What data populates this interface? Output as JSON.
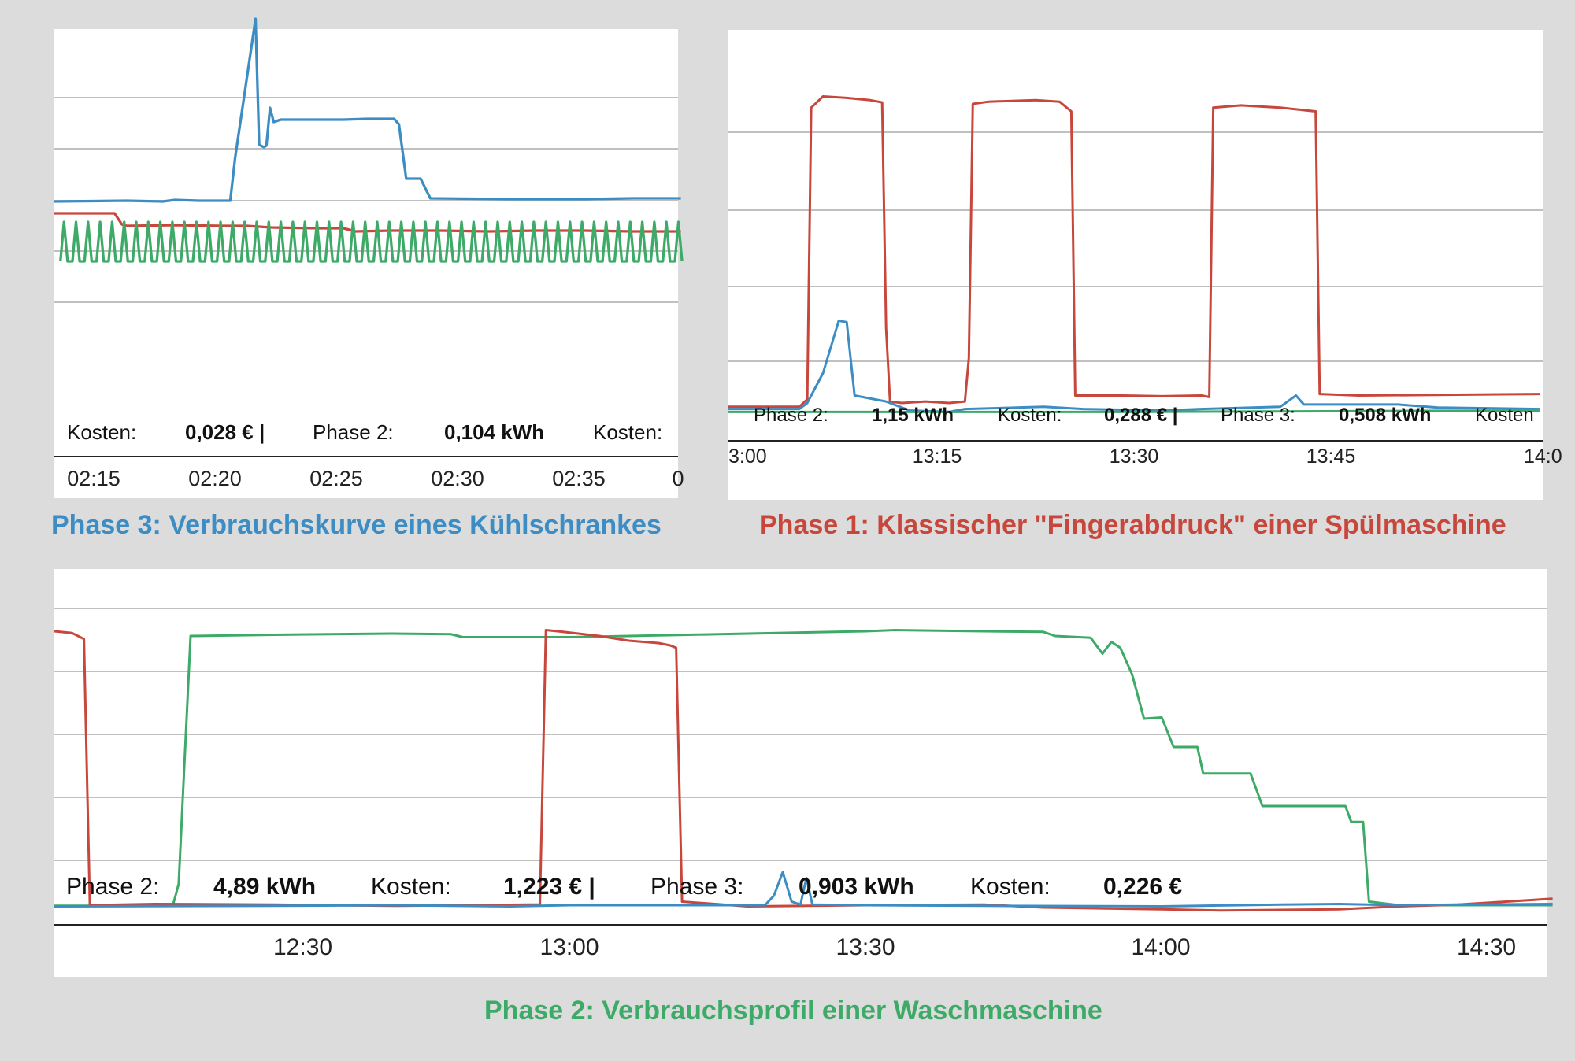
{
  "colors": {
    "blue": "#3c8dc4",
    "red": "#c8473c",
    "green": "#3daa67",
    "grid": "#c0c0c0",
    "axis": "#222222"
  },
  "captions": {
    "fridge": "Phase 3: Verbrauchskurve eines Kühlschrankes",
    "dishwasher": "Phase 1: Klassischer \"Fingerabdruck\" einer Spülmaschine",
    "washer": "Phase 2: Verbrauchsprofil einer Waschmaschine"
  },
  "chart_data": [
    {
      "type": "line",
      "x_ticks": [
        "02:15",
        "02:20",
        "02:25",
        "02:30",
        "02:35",
        "0"
      ],
      "x_range": [
        14,
        40
      ],
      "y_range": [
        0,
        400
      ],
      "grid": true,
      "footer": [
        {
          "label": "Kosten:",
          "value": "0,028 € |"
        },
        {
          "label": "Phase 2:",
          "value": "0,104 kWh"
        },
        {
          "label": "Kosten:",
          "value": ""
        }
      ],
      "series": [
        {
          "color": "blue",
          "points": [
            [
              14,
              136
            ],
            [
              17,
              137
            ],
            [
              18.5,
              136
            ],
            [
              19,
              138
            ],
            [
              20,
              137
            ],
            [
              21.3,
              137
            ],
            [
              21.5,
              191
            ],
            [
              22.35,
              368
            ],
            [
              22.5,
              208
            ],
            [
              22.7,
              205
            ],
            [
              22.8,
              207
            ],
            [
              22.95,
              255
            ],
            [
              23.1,
              237
            ],
            [
              23.4,
              240
            ],
            [
              25,
              240
            ],
            [
              26,
              240
            ],
            [
              27,
              241
            ],
            [
              28.1,
              241
            ],
            [
              28.3,
              234
            ],
            [
              28.6,
              165
            ],
            [
              29.2,
              165
            ],
            [
              29.6,
              140
            ],
            [
              33,
              139
            ],
            [
              36,
              139
            ],
            [
              38,
              140
            ],
            [
              40,
              140
            ]
          ]
        },
        {
          "color": "red",
          "points": [
            [
              14,
              121
            ],
            [
              16,
              121
            ],
            [
              16.5,
              121
            ],
            [
              16.8,
              107
            ],
            [
              17,
              105
            ],
            [
              19,
              106
            ],
            [
              21,
              105
            ],
            [
              22,
              105
            ],
            [
              23,
              103
            ],
            [
              25,
              102
            ],
            [
              26,
              102
            ],
            [
              26.5,
              98
            ],
            [
              28,
              99
            ],
            [
              30,
              99
            ],
            [
              32,
              98
            ],
            [
              34,
              99
            ],
            [
              36,
              99
            ],
            [
              38,
              98
            ],
            [
              40,
              98
            ]
          ]
        },
        {
          "color": "green",
          "peaks": {
            "start": 14.25,
            "end": 40,
            "period": 0.5,
            "high": 110,
            "low": 60
          }
        }
      ]
    },
    {
      "type": "line",
      "x_ticks": [
        "3:00",
        "13:15",
        "13:30",
        "13:45",
        "14:0"
      ],
      "x_range": [
        13.0,
        14.03
      ],
      "y_range": [
        0,
        500
      ],
      "grid": true,
      "footer": [
        {
          "label": "Phase 2:",
          "value": "1,15 kWh"
        },
        {
          "label": "Kosten:",
          "value": "0,288 € |"
        },
        {
          "label": "Phase 3:",
          "value": "0,508 kWh"
        },
        {
          "label": "Kosten",
          "value": ""
        }
      ],
      "series": [
        {
          "color": "red",
          "points": [
            [
              13.0,
              15
            ],
            [
              13.09,
              15
            ],
            [
              13.1,
              25
            ],
            [
              13.105,
              415
            ],
            [
              13.12,
              430
            ],
            [
              13.15,
              428
            ],
            [
              13.18,
              425
            ],
            [
              13.195,
              422
            ],
            [
              13.2,
              120
            ],
            [
              13.205,
              22
            ],
            [
              13.22,
              20
            ],
            [
              13.25,
              22
            ],
            [
              13.28,
              20
            ],
            [
              13.3,
              22
            ],
            [
              13.305,
              80
            ],
            [
              13.31,
              420
            ],
            [
              13.33,
              423
            ],
            [
              13.36,
              424
            ],
            [
              13.39,
              425
            ],
            [
              13.42,
              423
            ],
            [
              13.435,
              410
            ],
            [
              13.44,
              30
            ],
            [
              13.5,
              30
            ],
            [
              13.55,
              29
            ],
            [
              13.6,
              30
            ],
            [
              13.61,
              28
            ],
            [
              13.615,
              415
            ],
            [
              13.65,
              418
            ],
            [
              13.7,
              415
            ],
            [
              13.745,
              410
            ],
            [
              13.75,
              32
            ],
            [
              13.8,
              30
            ],
            [
              14.03,
              32
            ]
          ]
        },
        {
          "color": "blue",
          "points": [
            [
              13.0,
              12
            ],
            [
              13.09,
              12
            ],
            [
              13.1,
              20
            ],
            [
              13.12,
              60
            ],
            [
              13.14,
              130
            ],
            [
              13.15,
              128
            ],
            [
              13.16,
              30
            ],
            [
              13.2,
              22
            ],
            [
              13.23,
              10
            ],
            [
              13.28,
              8
            ],
            [
              13.3,
              12
            ],
            [
              13.4,
              15
            ],
            [
              13.45,
              12
            ],
            [
              13.55,
              10
            ],
            [
              13.6,
              12
            ],
            [
              13.7,
              15
            ],
            [
              13.72,
              30
            ],
            [
              13.73,
              18
            ],
            [
              13.85,
              18
            ],
            [
              13.9,
              14
            ],
            [
              14.03,
              12
            ]
          ]
        },
        {
          "color": "green",
          "points": [
            [
              13.0,
              8
            ],
            [
              13.5,
              8
            ],
            [
              14.03,
              10
            ]
          ]
        }
      ]
    },
    {
      "type": "line",
      "x_ticks": [
        "12:30",
        "13:00",
        "13:30",
        "14:00",
        "14:30"
      ],
      "x_range": [
        12.13,
        14.66
      ],
      "y_range": [
        0,
        600
      ],
      "grid": true,
      "footer": [
        {
          "label": "Phase 2:",
          "value": "4,89 kWh"
        },
        {
          "label": "Kosten:",
          "value": "1,223 € |"
        },
        {
          "label": "Phase 3:",
          "value": "0,903 kWh"
        },
        {
          "label": "Kosten:",
          "value": "0,226 €"
        }
      ],
      "series": [
        {
          "color": "green",
          "points": [
            [
              12.13,
              3
            ],
            [
              12.33,
              3
            ],
            [
              12.34,
              40
            ],
            [
              12.36,
              460
            ],
            [
              12.5,
              462
            ],
            [
              12.7,
              464
            ],
            [
              12.8,
              463
            ],
            [
              12.82,
              458
            ],
            [
              12.9,
              458
            ],
            [
              13.0,
              458
            ],
            [
              13.2,
              462
            ],
            [
              13.5,
              468
            ],
            [
              13.55,
              470
            ],
            [
              13.7,
              468
            ],
            [
              13.8,
              467
            ],
            [
              13.82,
              460
            ],
            [
              13.88,
              457
            ],
            [
              13.9,
              430
            ],
            [
              13.915,
              450
            ],
            [
              13.93,
              440
            ],
            [
              13.95,
              395
            ],
            [
              13.97,
              320
            ],
            [
              14.0,
              322
            ],
            [
              14.02,
              272
            ],
            [
              14.06,
              272
            ],
            [
              14.07,
              227
            ],
            [
              14.15,
              227
            ],
            [
              14.17,
              172
            ],
            [
              14.25,
              172
            ],
            [
              14.31,
              172
            ],
            [
              14.32,
              145
            ],
            [
              14.34,
              145
            ],
            [
              14.35,
              10
            ],
            [
              14.4,
              4
            ],
            [
              14.66,
              4
            ]
          ]
        },
        {
          "color": "red",
          "points": [
            [
              12.13,
              468
            ],
            [
              12.16,
              465
            ],
            [
              12.18,
              455
            ],
            [
              12.19,
              4
            ],
            [
              12.3,
              6
            ],
            [
              12.5,
              5
            ],
            [
              12.7,
              3
            ],
            [
              12.93,
              5
            ],
            [
              12.95,
              5
            ],
            [
              12.96,
              470
            ],
            [
              12.98,
              468
            ],
            [
              13.05,
              460
            ],
            [
              13.1,
              452
            ],
            [
              13.15,
              448
            ],
            [
              13.17,
              444
            ],
            [
              13.18,
              440
            ],
            [
              13.19,
              10
            ],
            [
              13.3,
              2
            ],
            [
              13.5,
              4
            ],
            [
              13.7,
              5
            ],
            [
              13.8,
              0
            ],
            [
              14.0,
              -3
            ],
            [
              14.1,
              -5
            ],
            [
              14.2,
              -4
            ],
            [
              14.3,
              -3
            ],
            [
              14.4,
              2
            ],
            [
              14.5,
              5
            ],
            [
              14.66,
              15
            ]
          ]
        },
        {
          "color": "blue",
          "points": [
            [
              12.13,
              2
            ],
            [
              12.5,
              3
            ],
            [
              12.7,
              4
            ],
            [
              12.9,
              2
            ],
            [
              13.0,
              4
            ],
            [
              13.3,
              4
            ],
            [
              13.33,
              4
            ],
            [
              13.345,
              20
            ],
            [
              13.36,
              60
            ],
            [
              13.375,
              10
            ],
            [
              13.39,
              5
            ],
            [
              13.4,
              50
            ],
            [
              13.41,
              5
            ],
            [
              13.5,
              4
            ],
            [
              13.7,
              3
            ],
            [
              14.0,
              2
            ],
            [
              14.2,
              5
            ],
            [
              14.3,
              6
            ],
            [
              14.4,
              4
            ],
            [
              14.5,
              5
            ],
            [
              14.66,
              6
            ]
          ]
        }
      ]
    }
  ]
}
